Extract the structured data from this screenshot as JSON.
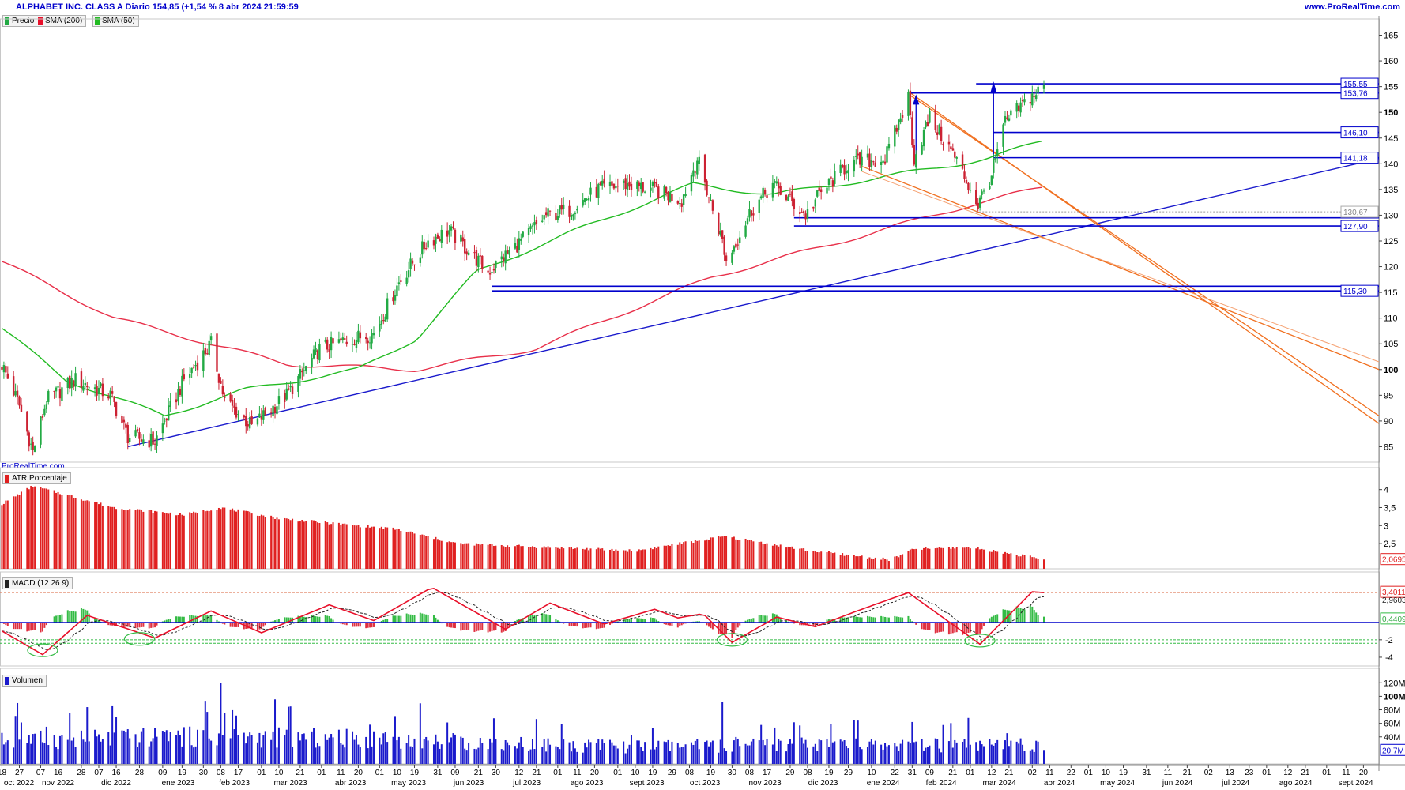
{
  "header": {
    "title": "ALPHABET INC. CLASS A Diario 154,85 (+1,54 % 8 abr 2024 21:59:59",
    "site": "www.ProRealTime.com",
    "watermark": "ProRealTime.com"
  },
  "colors": {
    "title": "#0000cc",
    "sma200": "#e8304a",
    "sma50": "#22bb22",
    "trendline": "#1a1acc",
    "channel": "#f07020",
    "up_candle": "#22aa44",
    "down_candle": "#cc2233",
    "atr": "#e02020",
    "volume": "#1a1acc",
    "macd": "#e8102a"
  },
  "legend": {
    "price": "Precio",
    "sma200": "SMA (200)",
    "sma50": "SMA (50)",
    "atr": "ATR Porcentaje",
    "macd": "MACD (12 26 9)",
    "volume": "Volumen"
  },
  "price_axis": {
    "ticks": [
      "165",
      "160",
      "155",
      "150",
      "145",
      "140",
      "135",
      "130",
      "125",
      "120",
      "115",
      "110",
      "105",
      "100",
      "95",
      "90",
      "85"
    ],
    "bold_ticks": [
      "150",
      "100"
    ]
  },
  "level_labels": [
    {
      "text": "155,55",
      "value": 155.55
    },
    {
      "text": "153,76",
      "value": 153.76
    },
    {
      "text": "146,10",
      "value": 146.1
    },
    {
      "text": "141,18",
      "value": 141.18
    },
    {
      "text": "130,67",
      "value": 130.67
    },
    {
      "text": "127,90",
      "value": 127.9
    },
    {
      "text": "115,30",
      "value": 115.3
    }
  ],
  "atr_axis": {
    "ticks": [
      "4",
      "3,5",
      "3",
      "2,5"
    ],
    "current": "2,0695"
  },
  "macd_axis": {
    "ticks": [
      "-2",
      "-4"
    ],
    "macd_value": "3,4011",
    "signal_value": "2,9603",
    "hist_value": "0,4409"
  },
  "volume_axis": {
    "ticks": [
      "120M",
      "100M",
      "80M",
      "60M",
      "40M"
    ],
    "current": "20,7M"
  },
  "x_axis": {
    "days": [
      "18",
      "27",
      "07",
      "16",
      "28",
      "07",
      "16",
      "28",
      "09",
      "19",
      "30",
      "08",
      "17",
      "01",
      "10",
      "21",
      "01",
      "11",
      "20",
      "01",
      "10",
      "19",
      "31",
      "09",
      "21",
      "30",
      "12",
      "21",
      "01",
      "11",
      "20",
      "01",
      "10",
      "19",
      "29",
      "08",
      "19",
      "30",
      "08",
      "17",
      "29",
      "08",
      "19",
      "29",
      "10",
      "22",
      "31",
      "09",
      "21",
      "01",
      "12",
      "21",
      "02",
      "11",
      "22",
      "01",
      "10",
      "19",
      "31",
      "11",
      "21",
      "02",
      "13",
      "23",
      "01",
      "12",
      "21",
      "01",
      "11",
      "20"
    ],
    "months": [
      "oct 2022",
      "nov 2022",
      "dic 2022",
      "ene 2023",
      "feb 2023",
      "mar 2023",
      "abr 2023",
      "may 2023",
      "jun 2023",
      "jul 2023",
      "ago 2023",
      "sept 2023",
      "oct 2023",
      "nov 2023",
      "dic 2023",
      "ene 2024",
      "feb 2024",
      "mar 2024",
      "abr 2024",
      "may 2024",
      "jun 2024",
      "jul 2024",
      "ago 2024",
      "sept 2024"
    ]
  },
  "chart_data": [
    {
      "type": "candlestick",
      "title": "ALPHABET INC. CLASS A Diario",
      "ylim": [
        82,
        166
      ],
      "series_anchor_closes": [
        {
          "date": "2022-10-18",
          "close": 101
        },
        {
          "date": "2022-10-27",
          "close": 93
        },
        {
          "date": "2022-11-03",
          "close": 84
        },
        {
          "date": "2022-11-10",
          "close": 94
        },
        {
          "date": "2022-11-25",
          "close": 98
        },
        {
          "date": "2022-12-13",
          "close": 95
        },
        {
          "date": "2022-12-22",
          "close": 87
        },
        {
          "date": "2023-01-05",
          "close": 86
        },
        {
          "date": "2023-01-20",
          "close": 98
        },
        {
          "date": "2023-02-03",
          "close": 105
        },
        {
          "date": "2023-02-10",
          "close": 94
        },
        {
          "date": "2023-02-24",
          "close": 89
        },
        {
          "date": "2023-03-14",
          "close": 95
        },
        {
          "date": "2023-03-31",
          "close": 104
        },
        {
          "date": "2023-04-17",
          "close": 106
        },
        {
          "date": "2023-04-28",
          "close": 107
        },
        {
          "date": "2023-05-11",
          "close": 117
        },
        {
          "date": "2023-05-26",
          "close": 125
        },
        {
          "date": "2023-06-06",
          "close": 127
        },
        {
          "date": "2023-06-26",
          "close": 119
        },
        {
          "date": "2023-07-13",
          "close": 125
        },
        {
          "date": "2023-07-26",
          "close": 130
        },
        {
          "date": "2023-08-07",
          "close": 131
        },
        {
          "date": "2023-08-22",
          "close": 135
        },
        {
          "date": "2023-09-05",
          "close": 136
        },
        {
          "date": "2023-09-19",
          "close": 135
        },
        {
          "date": "2023-10-04",
          "close": 133
        },
        {
          "date": "2023-10-12",
          "close": 141
        },
        {
          "date": "2023-10-25",
          "close": 125
        },
        {
          "date": "2023-10-27",
          "close": 121
        },
        {
          "date": "2023-11-09",
          "close": 131
        },
        {
          "date": "2023-11-20",
          "close": 136
        },
        {
          "date": "2023-12-07",
          "close": 130
        },
        {
          "date": "2023-12-14",
          "close": 134
        },
        {
          "date": "2023-12-29",
          "close": 140
        },
        {
          "date": "2024-01-17",
          "close": 141
        },
        {
          "date": "2024-01-29",
          "close": 153
        },
        {
          "date": "2024-02-01",
          "close": 141
        },
        {
          "date": "2024-02-09",
          "close": 149
        },
        {
          "date": "2024-02-21",
          "close": 142
        },
        {
          "date": "2024-03-05",
          "close": 132
        },
        {
          "date": "2024-03-12",
          "close": 138
        },
        {
          "date": "2024-03-19",
          "close": 148
        },
        {
          "date": "2024-04-01",
          "close": 153
        },
        {
          "date": "2024-04-08",
          "close": 154.85
        }
      ],
      "sma200_anchor": [
        {
          "date": "2022-10-18",
          "value": 121
        },
        {
          "date": "2022-12-15",
          "value": 110
        },
        {
          "date": "2023-03-15",
          "value": 101
        },
        {
          "date": "2023-05-20",
          "value": 100
        },
        {
          "date": "2023-07-20",
          "value": 104
        },
        {
          "date": "2023-10-20",
          "value": 118
        },
        {
          "date": "2024-01-05",
          "value": 126
        },
        {
          "date": "2024-03-01",
          "value": 132
        },
        {
          "date": "2024-04-08",
          "value": 135.5
        }
      ],
      "sma50_anchor": [
        {
          "date": "2022-10-18",
          "value": 108
        },
        {
          "date": "2022-11-20",
          "value": 98
        },
        {
          "date": "2023-01-10",
          "value": 91
        },
        {
          "date": "2023-02-20",
          "value": 96
        },
        {
          "date": "2023-04-20",
          "value": 100
        },
        {
          "date": "2023-05-20",
          "value": 106
        },
        {
          "date": "2023-06-20",
          "value": 119
        },
        {
          "date": "2023-08-10",
          "value": 127
        },
        {
          "date": "2023-10-10",
          "value": 136
        },
        {
          "date": "2023-11-20",
          "value": 134
        },
        {
          "date": "2024-01-10",
          "value": 137
        },
        {
          "date": "2024-03-10",
          "value": 141
        },
        {
          "date": "2024-04-08",
          "value": 144.5
        }
      ],
      "horizontal_levels": [
        155.55,
        153.76,
        146.1,
        141.18,
        127.9,
        115.3
      ],
      "dashed_level": 130.67
    },
    {
      "type": "bar",
      "title": "ATR Porcentaje",
      "ylim": [
        1.8,
        4.3
      ],
      "anchor_values": [
        {
          "date": "2022-10-18",
          "value": 3.6
        },
        {
          "date": "2022-11-03",
          "value": 4.1
        },
        {
          "date": "2022-12-15",
          "value": 3.5
        },
        {
          "date": "2023-01-20",
          "value": 3.3
        },
        {
          "date": "2023-02-08",
          "value": 3.5
        },
        {
          "date": "2023-03-10",
          "value": 3.2
        },
        {
          "date": "2023-05-10",
          "value": 2.9
        },
        {
          "date": "2023-06-10",
          "value": 2.5
        },
        {
          "date": "2023-09-10",
          "value": 2.3
        },
        {
          "date": "2023-10-26",
          "value": 2.7
        },
        {
          "date": "2023-12-10",
          "value": 2.3
        },
        {
          "date": "2024-01-20",
          "value": 2.05
        },
        {
          "date": "2024-02-01",
          "value": 2.35
        },
        {
          "date": "2024-03-01",
          "value": 2.4
        },
        {
          "date": "2024-04-08",
          "value": 2.0695
        }
      ]
    },
    {
      "type": "line",
      "title": "MACD (12 26 9)",
      "ylim": [
        -5,
        4.5
      ],
      "series": [
        {
          "name": "MACD",
          "anchor_values": [
            {
              "date": "2022-10-18",
              "value": -1.0
            },
            {
              "date": "2022-11-08",
              "value": -3.7
            },
            {
              "date": "2022-12-01",
              "value": 0.8
            },
            {
              "date": "2023-01-05",
              "value": -1.8
            },
            {
              "date": "2023-02-03",
              "value": 1.3
            },
            {
              "date": "2023-03-01",
              "value": -1.2
            },
            {
              "date": "2023-04-05",
              "value": 2.0
            },
            {
              "date": "2023-04-28",
              "value": 0.2
            },
            {
              "date": "2023-05-28",
              "value": 4.0
            },
            {
              "date": "2023-07-05",
              "value": -0.8
            },
            {
              "date": "2023-07-28",
              "value": 2.2
            },
            {
              "date": "2023-08-25",
              "value": -0.2
            },
            {
              "date": "2023-09-20",
              "value": 1.5
            },
            {
              "date": "2023-10-02",
              "value": 0.5
            },
            {
              "date": "2023-10-15",
              "value": 1.0
            },
            {
              "date": "2023-10-30",
              "value": -2.3
            },
            {
              "date": "2023-11-22",
              "value": 0.6
            },
            {
              "date": "2023-12-12",
              "value": -0.5
            },
            {
              "date": "2024-01-05",
              "value": 1.5
            },
            {
              "date": "2024-01-29",
              "value": 3.4
            },
            {
              "date": "2024-03-06",
              "value": -2.5
            },
            {
              "date": "2024-04-02",
              "value": 3.5
            },
            {
              "date": "2024-04-08",
              "value": 3.4
            }
          ]
        }
      ],
      "signal_value": 2.9603,
      "histogram_value": 0.4409
    },
    {
      "type": "bar",
      "title": "Volumen",
      "ylim": [
        0,
        125000000
      ],
      "anchor_values": [
        {
          "date": "2022-10-26",
          "value": 90000000
        },
        {
          "date": "2022-11-10",
          "value": 55000000
        },
        {
          "date": "2023-02-08",
          "value": 120000000
        },
        {
          "date": "2023-02-01",
          "value": 77000000
        },
        {
          "date": "2023-04-26",
          "value": 58000000
        },
        {
          "date": "2023-10-25",
          "value": 92000000
        },
        {
          "date": "2024-01-31",
          "value": 62000000
        },
        {
          "date": "2024-02-29",
          "value": 68000000
        },
        {
          "date": "2024-04-08",
          "value": 20700000
        }
      ]
    }
  ]
}
